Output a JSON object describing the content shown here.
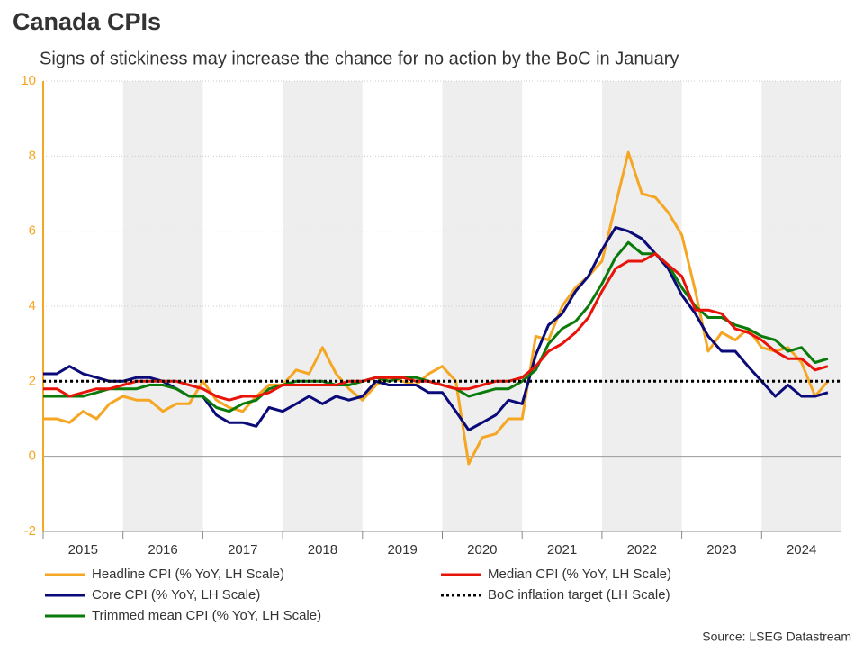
{
  "chart_data": {
    "type": "line",
    "title": "Canada CPIs",
    "subtitle": "Signs of stickiness may increase the chance for no action by the BoC in January",
    "source": "Source: LSEG Datastream",
    "x": [
      2015,
      2015.17,
      2015.33,
      2015.5,
      2015.67,
      2015.83,
      2016,
      2016.17,
      2016.33,
      2016.5,
      2016.67,
      2016.83,
      2017,
      2017.17,
      2017.33,
      2017.5,
      2017.67,
      2017.83,
      2018,
      2018.17,
      2018.33,
      2018.5,
      2018.67,
      2018.83,
      2019,
      2019.17,
      2019.33,
      2019.5,
      2019.67,
      2019.83,
      2020,
      2020.17,
      2020.33,
      2020.5,
      2020.67,
      2020.83,
      2021,
      2021.17,
      2021.33,
      2021.5,
      2021.67,
      2021.83,
      2022,
      2022.17,
      2022.33,
      2022.5,
      2022.67,
      2022.83,
      2023,
      2023.17,
      2023.33,
      2023.5,
      2023.67,
      2023.83,
      2024,
      2024.17,
      2024.33,
      2024.5,
      2024.67,
      2024.83
    ],
    "xlim": [
      2015,
      2025
    ],
    "xticks": [
      {
        "value": 2015.5,
        "label": "2015"
      },
      {
        "value": 2016.5,
        "label": "2016"
      },
      {
        "value": 2017.5,
        "label": "2017"
      },
      {
        "value": 2018.5,
        "label": "2018"
      },
      {
        "value": 2019.5,
        "label": "2019"
      },
      {
        "value": 2020.5,
        "label": "2020"
      },
      {
        "value": 2021.5,
        "label": "2021"
      },
      {
        "value": 2022.5,
        "label": "2022"
      },
      {
        "value": 2023.5,
        "label": "2023"
      },
      {
        "value": 2024.5,
        "label": "2024"
      }
    ],
    "ylim": [
      -2,
      10
    ],
    "yticks": [
      -2,
      0,
      2,
      4,
      6,
      8,
      10
    ],
    "grid": true,
    "series": [
      {
        "name": "Headline CPI (% YoY, LH Scale)",
        "color": "#f5a623",
        "values": [
          1.0,
          1.0,
          0.9,
          1.2,
          1.0,
          1.4,
          1.6,
          1.5,
          1.5,
          1.2,
          1.4,
          1.4,
          2.0,
          1.5,
          1.3,
          1.2,
          1.6,
          1.9,
          1.9,
          2.3,
          2.2,
          2.9,
          2.2,
          1.8,
          1.5,
          1.9,
          2.1,
          2.0,
          1.9,
          2.2,
          2.4,
          2.0,
          -0.2,
          0.5,
          0.6,
          1.0,
          1.0,
          3.2,
          3.1,
          4.0,
          4.5,
          4.8,
          5.2,
          6.7,
          8.1,
          7.0,
          6.9,
          6.5,
          5.9,
          4.4,
          2.8,
          3.3,
          3.1,
          3.4,
          2.9,
          2.8,
          2.9,
          2.5,
          1.6,
          2.0
        ]
      },
      {
        "name": "Core CPI (% YoY, LH Scale)",
        "color": "#0a0a78",
        "values": [
          2.2,
          2.2,
          2.4,
          2.2,
          2.1,
          2.0,
          2.0,
          2.1,
          2.1,
          2.0,
          1.8,
          1.6,
          1.6,
          1.1,
          0.9,
          0.9,
          0.8,
          1.3,
          1.2,
          1.4,
          1.6,
          1.4,
          1.6,
          1.5,
          1.6,
          2.0,
          1.9,
          1.9,
          1.9,
          1.7,
          1.7,
          1.2,
          0.7,
          0.9,
          1.1,
          1.5,
          1.4,
          2.7,
          3.5,
          3.8,
          4.4,
          4.8,
          5.5,
          6.1,
          6.0,
          5.8,
          5.4,
          5.0,
          4.3,
          3.8,
          3.2,
          2.8,
          2.8,
          2.4,
          2.0,
          1.6,
          1.9,
          1.6,
          1.6,
          1.7
        ]
      },
      {
        "name": "Trimmed mean CPI (% YoY, LH Scale)",
        "color": "#0a7a0a",
        "values": [
          1.6,
          1.6,
          1.6,
          1.6,
          1.7,
          1.8,
          1.8,
          1.8,
          1.9,
          1.9,
          1.8,
          1.6,
          1.6,
          1.3,
          1.2,
          1.4,
          1.5,
          1.8,
          1.9,
          2.0,
          2.0,
          2.0,
          1.9,
          1.9,
          2.0,
          2.1,
          2.0,
          2.1,
          2.1,
          2.0,
          1.9,
          1.8,
          1.6,
          1.7,
          1.8,
          1.8,
          2.0,
          2.3,
          3.0,
          3.4,
          3.6,
          4.0,
          4.6,
          5.3,
          5.7,
          5.4,
          5.4,
          5.1,
          4.5,
          4.0,
          3.7,
          3.7,
          3.5,
          3.4,
          3.2,
          3.1,
          2.8,
          2.9,
          2.5,
          2.6
        ]
      },
      {
        "name": "Median CPI (% YoY, LH Scale)",
        "color": "#e8140a",
        "values": [
          1.8,
          1.8,
          1.6,
          1.7,
          1.8,
          1.8,
          1.9,
          2.0,
          2.0,
          2.0,
          2.0,
          1.9,
          1.8,
          1.6,
          1.5,
          1.6,
          1.6,
          1.7,
          1.9,
          1.9,
          1.9,
          1.9,
          1.9,
          2.0,
          2.0,
          2.1,
          2.1,
          2.1,
          2.0,
          2.0,
          1.9,
          1.8,
          1.8,
          1.9,
          2.0,
          2.0,
          2.1,
          2.4,
          2.8,
          3.0,
          3.3,
          3.7,
          4.4,
          5.0,
          5.2,
          5.2,
          5.4,
          5.1,
          4.8,
          3.9,
          3.9,
          3.8,
          3.4,
          3.3,
          3.1,
          2.8,
          2.6,
          2.6,
          2.3,
          2.4
        ]
      },
      {
        "name": "BoC inflation target (LH Scale)",
        "color": "#000000",
        "style": "dotted",
        "x": [
          2015,
          2025
        ],
        "values": [
          2,
          2
        ]
      }
    ]
  }
}
